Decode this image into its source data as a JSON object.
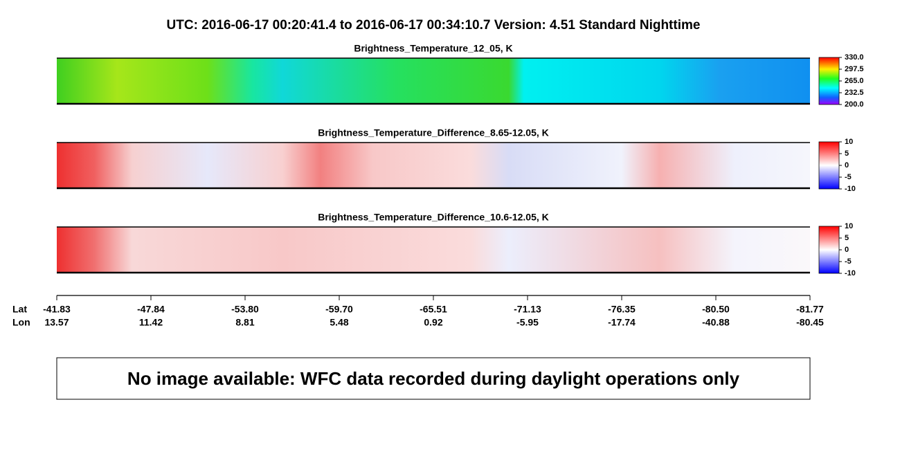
{
  "title": "UTC:  2016-06-17   00:20:41.4  to  2016-06-17   00:34:10.7    Version: 4.51  Standard Nighttime",
  "panels": [
    {
      "title": "Brightness_Temperature_12_05, K",
      "colorbar": [
        "330.0",
        "297.5",
        "265.0",
        "232.5",
        "200.0"
      ]
    },
    {
      "title": "Brightness_Temperature_Difference_8.65-12.05, K",
      "colorbar": [
        "10",
        "5",
        "0",
        "-5",
        "-10"
      ]
    },
    {
      "title": "Brightness_Temperature_Difference_10.6-12.05, K",
      "colorbar": [
        "10",
        "5",
        "0",
        "-5",
        "-10"
      ]
    }
  ],
  "axis": {
    "lat_label": "Lat",
    "lon_label": "Lon",
    "lat": [
      "-41.83",
      "-47.84",
      "-53.80",
      "-59.70",
      "-65.51",
      "-71.13",
      "-76.35",
      "-80.50",
      "-81.77"
    ],
    "lon": [
      "13.57",
      "11.42",
      "8.81",
      "5.48",
      "0.92",
      "-5.95",
      "-17.74",
      "-40.88",
      "-80.45"
    ]
  },
  "message": "No image available: WFC data recorded during daylight operations only"
}
